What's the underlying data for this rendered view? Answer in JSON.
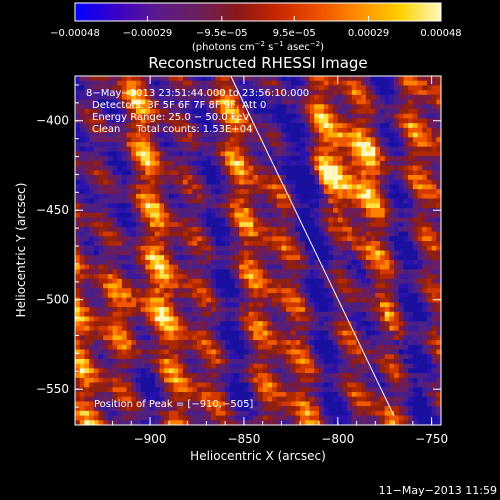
{
  "chart_data": {
    "type": "heatmap",
    "title": "Reconstructed RHESSI Image",
    "xlabel": "Heliocentric X (arcsec)",
    "ylabel": "Heliocentric Y (arcsec)",
    "x_range": [
      -940,
      -745
    ],
    "y_range": [
      -570,
      -375
    ],
    "x_ticks": [
      {
        "v": -900,
        "label": "−900"
      },
      {
        "v": -850,
        "label": "−850"
      },
      {
        "v": -800,
        "label": "−800"
      },
      {
        "v": -750,
        "label": "−750"
      }
    ],
    "y_ticks": [
      {
        "v": -400,
        "label": "−400"
      },
      {
        "v": -450,
        "label": "−450"
      },
      {
        "v": -500,
        "label": "−500"
      },
      {
        "v": -550,
        "label": "−550"
      }
    ],
    "colorbar": {
      "range": [
        -0.00048,
        0.00048
      ],
      "ticks": [
        {
          "v": -0.00048,
          "label": "−0.00048"
        },
        {
          "v": -0.00029,
          "label": "−0.00029"
        },
        {
          "v": -9.5e-05,
          "label": "−9.5e−05"
        },
        {
          "v": 9.5e-05,
          "label": "9.5e−05"
        },
        {
          "v": 0.00029,
          "label": "0.00029"
        },
        {
          "v": 0.00048,
          "label": "0.00048"
        }
      ],
      "unit_main": "(photons cm",
      "unit_sup1": "−2",
      "unit_mid": " s",
      "unit_sup2": "−1",
      "unit_mid2": " asec",
      "unit_sup3": "−2",
      "unit_end": ")",
      "colors": [
        "#0000ff",
        "#3a00c8",
        "#5a1a8c",
        "#6a2060",
        "#8a1818",
        "#c82800",
        "#f05000",
        "#ff9000",
        "#ffd000",
        "#fff8c0"
      ]
    },
    "limb_line": {
      "from": [
        -857,
        -375
      ],
      "to": [
        -770,
        -565
      ]
    },
    "peak": [
      -910,
      -505
    ],
    "annotations": [
      "8−May−2013 23:51:44.000 to 23:56:10.000",
      "Detectors: 3F 5F 6F 7F 8F 9F, Att 0",
      "Energy Range: 25.0 − 50.0 keV",
      "Clean     Total counts: 1.53E+04"
    ],
    "peak_label": "Position of Peak = [−910,−505]",
    "timestamp": "11−May−2013 11:59"
  }
}
